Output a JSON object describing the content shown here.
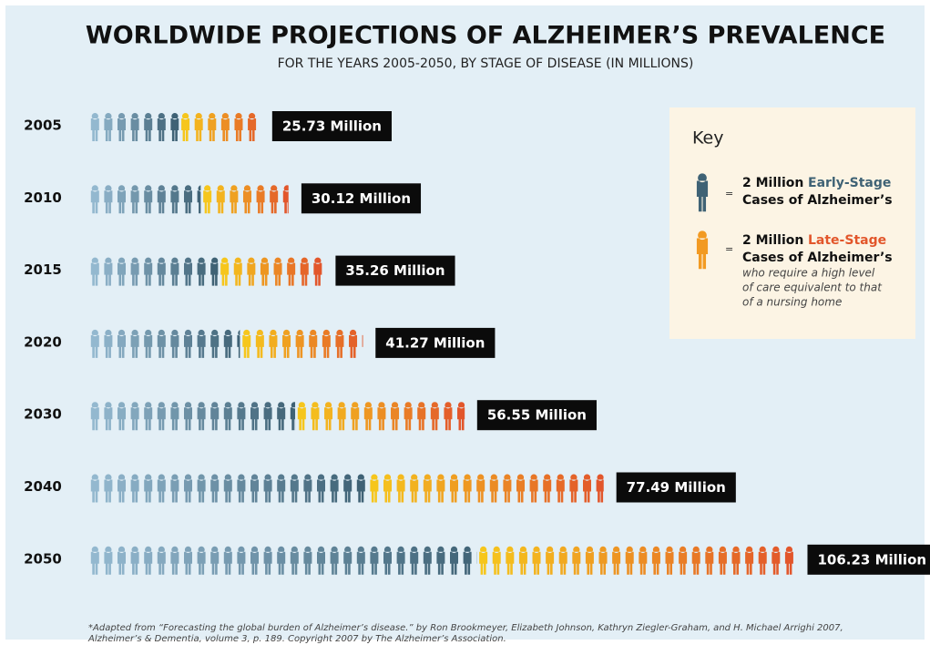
{
  "chart_data": {
    "type": "pictograph",
    "title": "WORLDWIDE PROJECTIONS OF ALZHEIMER’S PREVALENCE",
    "subtitle": "FOR THE YEARS 2005-2050, BY STAGE OF DISEASE (IN MILLIONS)",
    "categories": [
      "2005",
      "2010",
      "2015",
      "2020",
      "2030",
      "2040",
      "2050"
    ],
    "series": [
      {
        "name": "Early-Stage",
        "colors": [
          "#93b8cf",
          "#3f6275"
        ],
        "values": [
          13.6,
          16.9,
          19.5,
          22.8,
          31.1,
          42.0,
          58.4
        ]
      },
      {
        "name": "Late-Stage",
        "colors": [
          "#f6c61c",
          "#e2562b"
        ],
        "values": [
          12.1,
          13.2,
          15.8,
          18.5,
          25.5,
          35.5,
          47.8
        ]
      }
    ],
    "totals": {
      "values": [
        25.73,
        30.12,
        35.26,
        41.27,
        56.55,
        77.49,
        106.23
      ],
      "value_labels": [
        "25.73 Million",
        "30.12 Million",
        "35.26 Million",
        "41.27 Million",
        "56.55 Million",
        "77.49 Million",
        "106.23 Million"
      ]
    }
  },
  "key": {
    "title": "Key",
    "items": [
      {
        "unit": {
          "value": 2,
          "label": "2 Million"
        },
        "equals": "=",
        "stage": "Early-Stage",
        "text": "Cases of Alzheimer’s"
      },
      {
        "unit": {
          "value": 2,
          "label": "2 Million"
        },
        "equals": "=",
        "stage": "Late-Stage",
        "text": "Cases of Alzheimer’s",
        "note": [
          "who require a high level",
          "of care equivalent to that",
          "of a nursing home"
        ]
      }
    ]
  },
  "footnote": [
    "*Adapted from “Forecasting the global burden of Alzheimer’s disease.” by Ron Brookmeyer, Elizabeth Johnson, Kathryn Ziegler-Graham, and H. Michael Arrighi 2007,",
    "Alzheimer’s & Dementia, volume 3, p. 189. Copyright 2007 by The Alzheimer’s Association."
  ]
}
